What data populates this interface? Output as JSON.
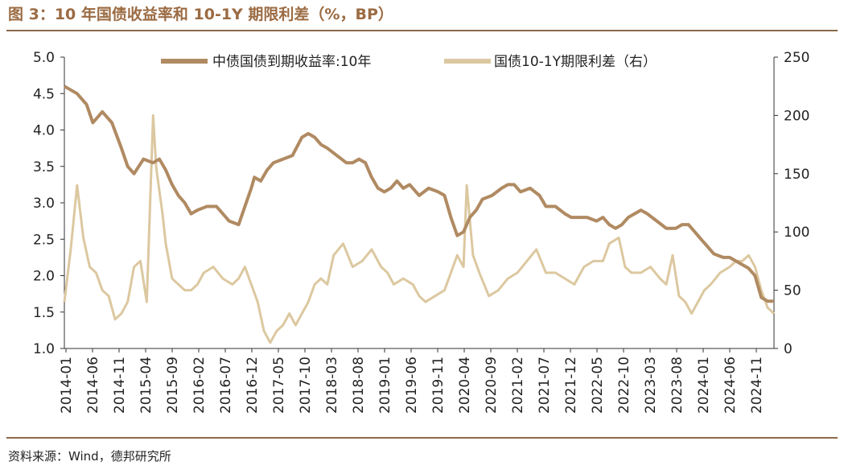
{
  "title": "图 3：10 年国债收益率和 10-1Y 期限利差（%，BP）",
  "source": "资料来源：Wind，德邦研究所",
  "colors": {
    "yield": "#b08a62",
    "spread": "#dcc8a0",
    "title": "#9b6b43",
    "rule": "#8b6a4c"
  },
  "chart_data": {
    "type": "line",
    "x_tick_labels": [
      "2014-01",
      "2014-06",
      "2014-11",
      "2015-04",
      "2015-09",
      "2016-02",
      "2016-07",
      "2016-12",
      "2017-05",
      "2017-10",
      "2018-03",
      "2018-08",
      "2019-01",
      "2019-06",
      "2019-11",
      "2020-04",
      "2020-09",
      "2021-02",
      "2021-07",
      "2021-12",
      "2022-05",
      "2022-10",
      "2023-03",
      "2023-08",
      "2024-01",
      "2024-06",
      "2024-11"
    ],
    "y_left": {
      "min": 1.0,
      "max": 5.0,
      "ticks": [
        "1.0",
        "1.5",
        "2.0",
        "2.5",
        "3.0",
        "3.5",
        "4.0",
        "4.5",
        "5.0"
      ]
    },
    "y_right": {
      "min": 0,
      "max": 250,
      "ticks": [
        "0",
        "50",
        "100",
        "150",
        "200",
        "250"
      ]
    },
    "legend": [
      "中债国债到期收益率:10年",
      "国债10-1Y期限利差（右）"
    ],
    "series": [
      {
        "name": "中债国债到期收益率:10年",
        "axis": "left",
        "x": [
          2014.0,
          2014.2,
          2014.35,
          2014.45,
          2014.6,
          2014.75,
          2014.9,
          2015.0,
          2015.1,
          2015.25,
          2015.4,
          2015.5,
          2015.6,
          2015.7,
          2015.8,
          2015.9,
          2016.0,
          2016.1,
          2016.25,
          2016.4,
          2016.5,
          2016.6,
          2016.75,
          2016.85,
          2016.95,
          2017.0,
          2017.1,
          2017.2,
          2017.3,
          2017.45,
          2017.6,
          2017.75,
          2017.85,
          2017.95,
          2018.05,
          2018.15,
          2018.3,
          2018.45,
          2018.55,
          2018.65,
          2018.75,
          2018.85,
          2018.95,
          2019.05,
          2019.15,
          2019.25,
          2019.35,
          2019.45,
          2019.6,
          2019.75,
          2019.9,
          2020.0,
          2020.1,
          2020.2,
          2020.3,
          2020.4,
          2020.5,
          2020.6,
          2020.75,
          2020.9,
          2021.0,
          2021.1,
          2021.2,
          2021.35,
          2021.5,
          2021.6,
          2021.75,
          2021.9,
          2022.0,
          2022.1,
          2022.25,
          2022.4,
          2022.5,
          2022.6,
          2022.7,
          2022.8,
          2022.9,
          2023.0,
          2023.1,
          2023.2,
          2023.35,
          2023.5,
          2023.65,
          2023.75,
          2023.85,
          2023.95,
          2024.05,
          2024.15,
          2024.25,
          2024.4,
          2024.5,
          2024.6,
          2024.7,
          2024.8,
          2024.9,
          2025.0,
          2025.1,
          2025.2
        ],
        "values": [
          4.6,
          4.5,
          4.35,
          4.1,
          4.25,
          4.1,
          3.75,
          3.5,
          3.4,
          3.6,
          3.55,
          3.6,
          3.45,
          3.25,
          3.1,
          3.0,
          2.85,
          2.9,
          2.95,
          2.95,
          2.85,
          2.75,
          2.7,
          2.95,
          3.2,
          3.35,
          3.3,
          3.45,
          3.55,
          3.6,
          3.65,
          3.9,
          3.95,
          3.9,
          3.8,
          3.75,
          3.65,
          3.55,
          3.55,
          3.6,
          3.55,
          3.35,
          3.2,
          3.15,
          3.2,
          3.3,
          3.2,
          3.25,
          3.1,
          3.2,
          3.15,
          3.1,
          2.8,
          2.55,
          2.6,
          2.8,
          2.9,
          3.05,
          3.1,
          3.2,
          3.25,
          3.25,
          3.15,
          3.2,
          3.1,
          2.95,
          2.95,
          2.85,
          2.8,
          2.8,
          2.8,
          2.75,
          2.8,
          2.7,
          2.65,
          2.7,
          2.8,
          2.85,
          2.9,
          2.85,
          2.75,
          2.65,
          2.65,
          2.7,
          2.7,
          2.6,
          2.5,
          2.4,
          2.3,
          2.25,
          2.25,
          2.2,
          2.15,
          2.1,
          2.0,
          1.7,
          1.65,
          1.65
        ]
      },
      {
        "name": "国债10-1Y期限利差（右）",
        "axis": "right",
        "x": [
          2014.0,
          2014.1,
          2014.2,
          2014.3,
          2014.4,
          2014.5,
          2014.6,
          2014.7,
          2014.8,
          2014.9,
          2015.0,
          2015.1,
          2015.2,
          2015.3,
          2015.4,
          2015.45,
          2015.55,
          2015.6,
          2015.7,
          2015.8,
          2015.9,
          2016.0,
          2016.1,
          2016.2,
          2016.35,
          2016.5,
          2016.65,
          2016.75,
          2016.85,
          2016.95,
          2017.05,
          2017.15,
          2017.25,
          2017.35,
          2017.45,
          2017.55,
          2017.65,
          2017.75,
          2017.85,
          2017.95,
          2018.05,
          2018.15,
          2018.25,
          2018.4,
          2018.55,
          2018.7,
          2018.85,
          2019.0,
          2019.1,
          2019.2,
          2019.35,
          2019.5,
          2019.6,
          2019.7,
          2019.85,
          2020.0,
          2020.1,
          2020.2,
          2020.3,
          2020.35,
          2020.45,
          2020.55,
          2020.7,
          2020.85,
          2021.0,
          2021.15,
          2021.3,
          2021.45,
          2021.6,
          2021.75,
          2021.9,
          2022.05,
          2022.2,
          2022.35,
          2022.5,
          2022.6,
          2022.75,
          2022.85,
          2022.95,
          2023.1,
          2023.25,
          2023.4,
          2023.5,
          2023.6,
          2023.7,
          2023.8,
          2023.9,
          2024.0,
          2024.1,
          2024.2,
          2024.35,
          2024.5,
          2024.6,
          2024.7,
          2024.8,
          2024.9,
          2025.0,
          2025.1,
          2025.2
        ],
        "values": [
          40,
          85,
          140,
          95,
          70,
          65,
          50,
          45,
          25,
          30,
          40,
          70,
          75,
          40,
          200,
          155,
          115,
          90,
          60,
          55,
          50,
          50,
          55,
          65,
          70,
          60,
          55,
          60,
          70,
          55,
          40,
          15,
          5,
          15,
          20,
          30,
          20,
          30,
          40,
          55,
          60,
          55,
          80,
          90,
          70,
          75,
          85,
          70,
          65,
          55,
          60,
          55,
          45,
          40,
          45,
          50,
          65,
          80,
          70,
          140,
          80,
          65,
          45,
          50,
          60,
          65,
          75,
          85,
          65,
          65,
          60,
          55,
          70,
          75,
          75,
          90,
          95,
          70,
          65,
          65,
          70,
          60,
          55,
          80,
          45,
          40,
          30,
          40,
          50,
          55,
          65,
          70,
          75,
          75,
          80,
          70,
          50,
          35,
          30
        ]
      }
    ]
  }
}
